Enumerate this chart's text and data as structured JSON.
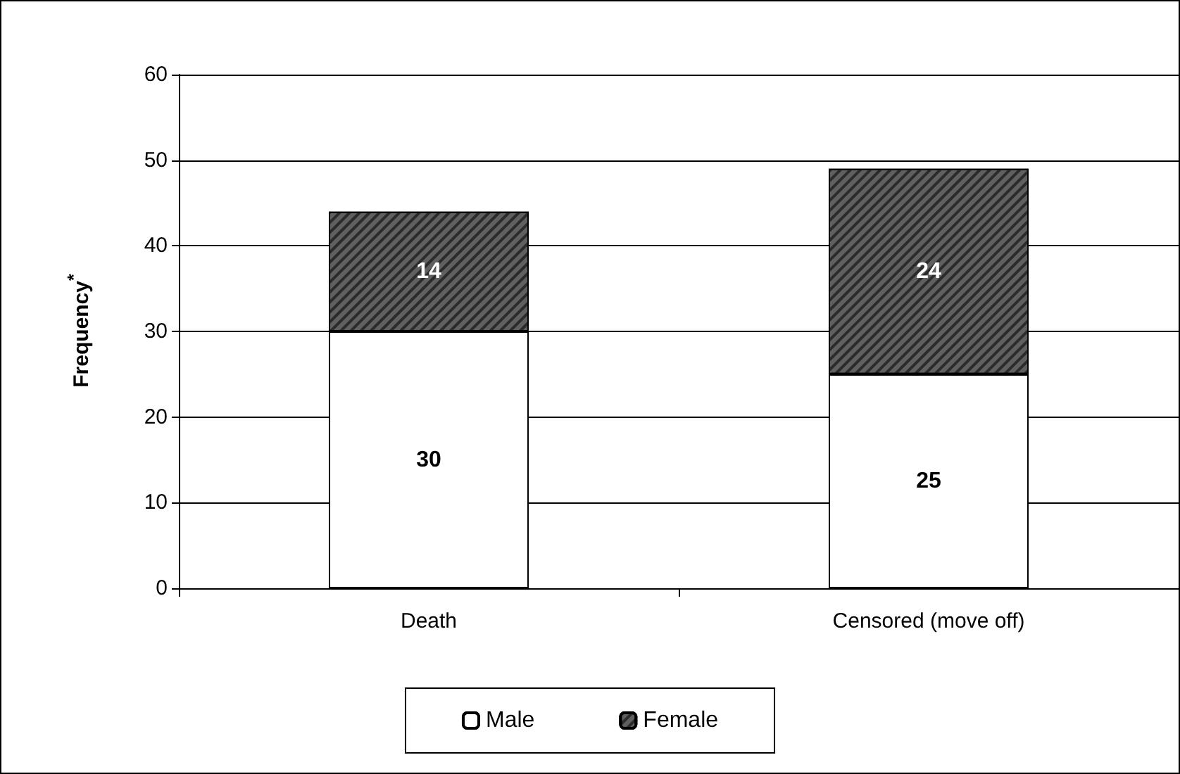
{
  "chart_data": {
    "type": "bar",
    "ylabel": "Frequency$^{*}$",
    "categories": [
      "Death",
      "Censored (move off)"
    ],
    "series": [
      {
        "name": "Male",
        "color": "#ffffff",
        "values": [
          30,
          25
        ]
      },
      {
        "name": "Female",
        "color": "#606060",
        "values": [
          14,
          24
        ]
      }
    ],
    "stacked": true,
    "ylim": [
      0,
      60
    ],
    "yticks": [
      0,
      10,
      20,
      30,
      40,
      50,
      60
    ],
    "grid": "y",
    "legend": "bottom",
    "data_labels": true
  }
}
